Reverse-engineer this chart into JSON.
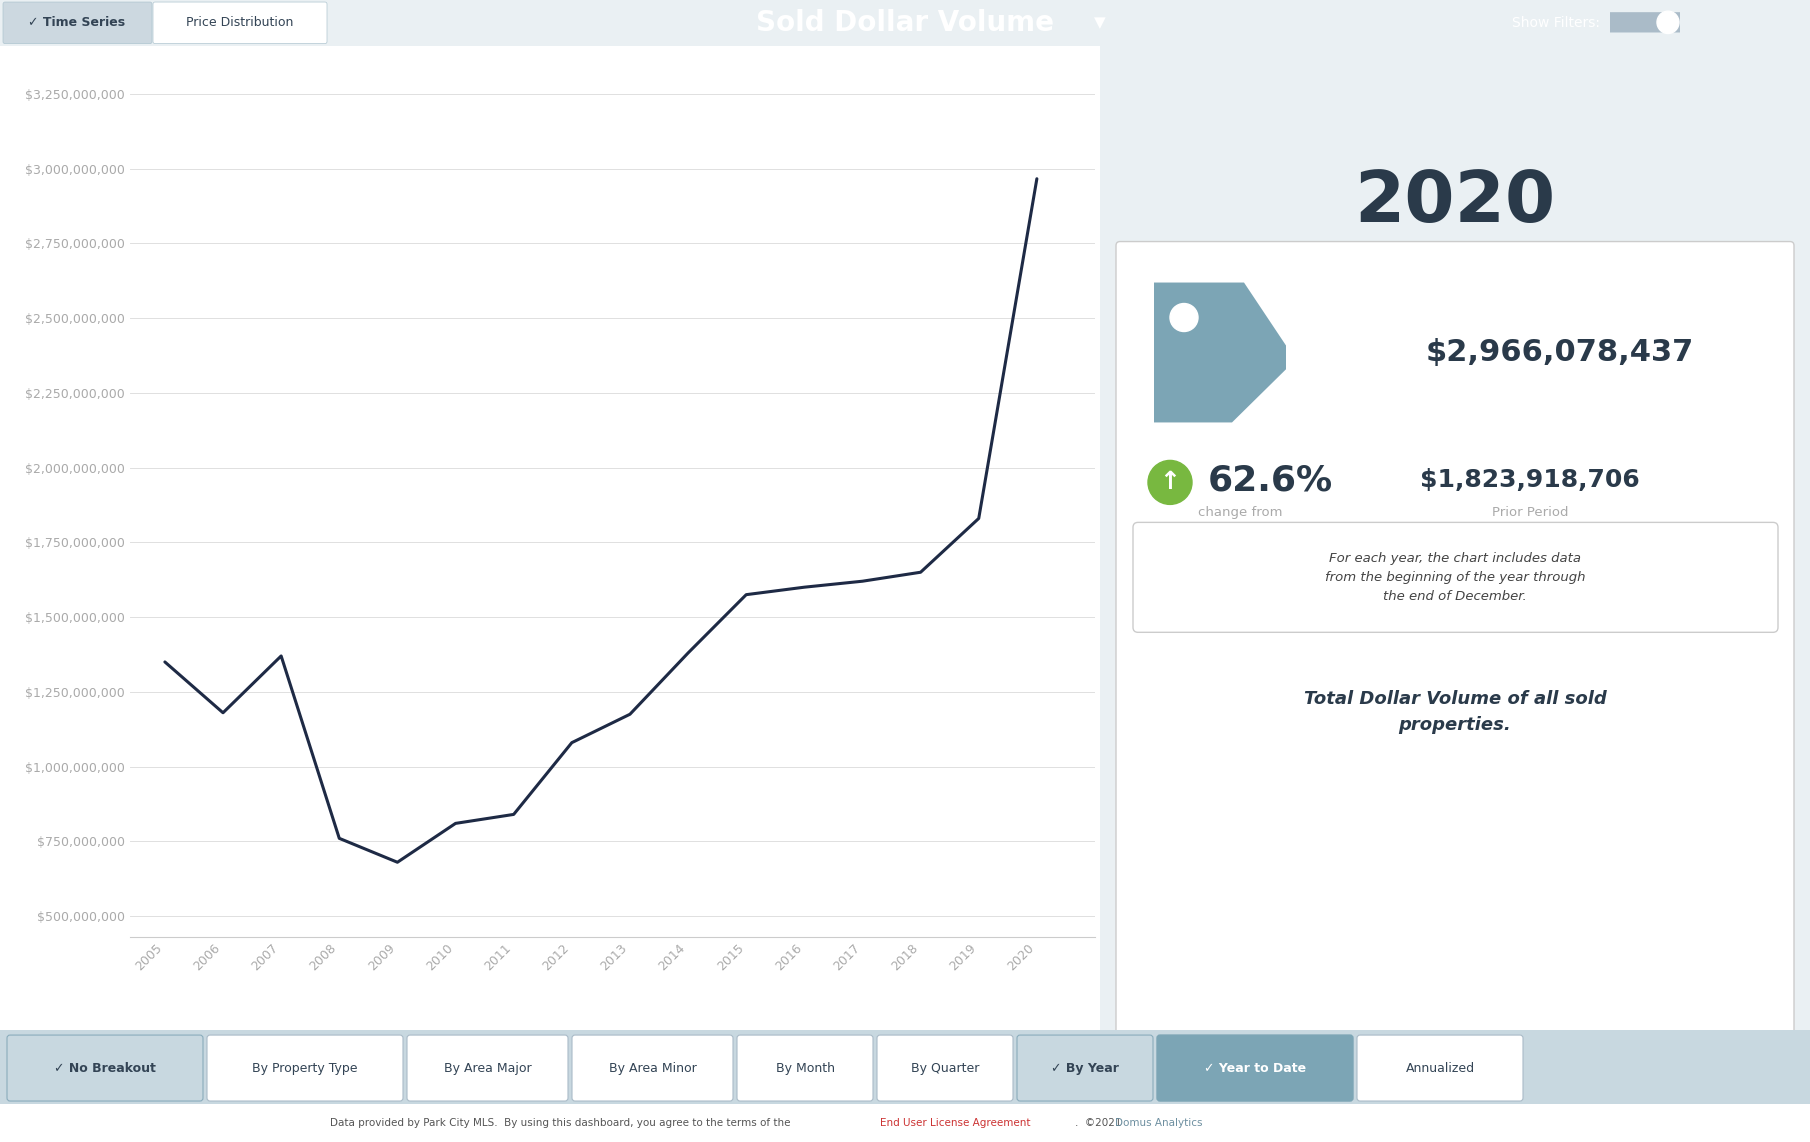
{
  "years": [
    2005,
    2006,
    2007,
    2008,
    2009,
    2010,
    2011,
    2012,
    2013,
    2014,
    2015,
    2016,
    2017,
    2018,
    2019,
    2020
  ],
  "values": [
    1350000000,
    1180000000,
    1370000000,
    760000000,
    680000000,
    810000000,
    840000000,
    1080000000,
    1175000000,
    1380000000,
    1575000000,
    1600000000,
    1620000000,
    1650000000,
    1830000000,
    2966078437
  ],
  "line_color": "#1e2a45",
  "line_width": 2.2,
  "chart_bg": "#ffffff",
  "overall_bg": "#eaf0f3",
  "header_bg": "#6d8fa0",
  "header_text": "Sold Dollar Volume",
  "header_color": "#ffffff",
  "ytick_labels": [
    "$500,000,000",
    "$750,000,000",
    "$1,000,000,000",
    "$1,250,000,000",
    "$1,500,000,000",
    "$1,750,000,000",
    "$2,000,000,000",
    "$2,250,000,000",
    "$2,500,000,000",
    "$2,750,000,000",
    "$3,000,000,000",
    "$3,250,000,000"
  ],
  "ytick_values": [
    500000000,
    750000000,
    1000000000,
    1250000000,
    1500000000,
    1750000000,
    2000000000,
    2250000000,
    2500000000,
    2750000000,
    3000000000,
    3250000000
  ],
  "ylim": [
    430000000,
    3380000000
  ],
  "grid_color": "#e0e0e0",
  "axis_label_color": "#aaaaaa",
  "year_label": "2020",
  "main_value": "$2,966,078,437",
  "change_pct": "62.6%",
  "prior_period_value": "$1,823,918,706",
  "tag_color": "#7ca5b5",
  "arrow_color": "#78b840",
  "info_box_text": "For each year, the chart includes data\nfrom the beginning of the year through\nthe end of December.",
  "total_text": "Total Dollar Volume of all sold\nproperties.",
  "footer_text": "Data provided by Park City MLS.  By using this dashboard, you agree to the terms of the ",
  "footer_link": "End User License Agreement",
  "footer_link_color": "#cc3333",
  "footer_domus_color": "#6d8fa0",
  "right_panel_bg": "#f5f8fa",
  "right_card_bg": "#ffffff",
  "tab_ts_color": "#ccd8e0",
  "tab_pd_color": "#ffffff",
  "tab_text_dark": "#334455",
  "btn_active_bg": "#7ca5b5",
  "btn_inactive_bg": "#ffffff",
  "btn_bar_bg": "#c8d8e0",
  "btn_active_dark": "#c8d8e0"
}
